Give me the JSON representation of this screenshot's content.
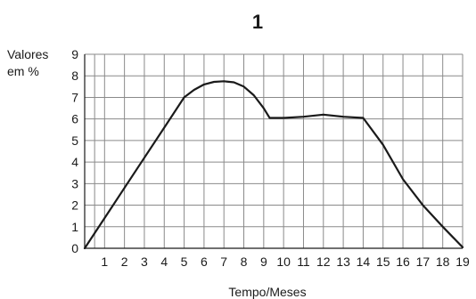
{
  "chart_data": {
    "type": "line",
    "title": "1",
    "ylabel": [
      "Valores",
      "em %"
    ],
    "xlabel": "Tempo/Meses",
    "xlim": [
      0,
      19
    ],
    "ylim": [
      0,
      9
    ],
    "x_ticks": [
      "1",
      "2",
      "3",
      "4",
      "5",
      "6",
      "7",
      "8",
      "9",
      "10",
      "11",
      "12",
      "13",
      "14",
      "15",
      "16",
      "17",
      "18",
      "19"
    ],
    "y_ticks": [
      "0",
      "1",
      "2",
      "3",
      "4",
      "5",
      "6",
      "7",
      "8",
      "9"
    ],
    "grid": true,
    "series": [
      {
        "color": "#1a1a1a",
        "points": [
          [
            0,
            0
          ],
          [
            1,
            1.4
          ],
          [
            2,
            2.8
          ],
          [
            3,
            4.2
          ],
          [
            4,
            5.6
          ],
          [
            5,
            7.0
          ],
          [
            5.5,
            7.35
          ],
          [
            6,
            7.6
          ],
          [
            6.5,
            7.72
          ],
          [
            7,
            7.75
          ],
          [
            7.5,
            7.7
          ],
          [
            8,
            7.5
          ],
          [
            8.5,
            7.1
          ],
          [
            9,
            6.5
          ],
          [
            9.3,
            6.05
          ],
          [
            10,
            6.05
          ],
          [
            11,
            6.1
          ],
          [
            12,
            6.2
          ],
          [
            13,
            6.1
          ],
          [
            14,
            6.05
          ],
          [
            15,
            4.8
          ],
          [
            16,
            3.2
          ],
          [
            17,
            2.0
          ],
          [
            18,
            1.0
          ],
          [
            19,
            0.05
          ]
        ]
      }
    ]
  }
}
